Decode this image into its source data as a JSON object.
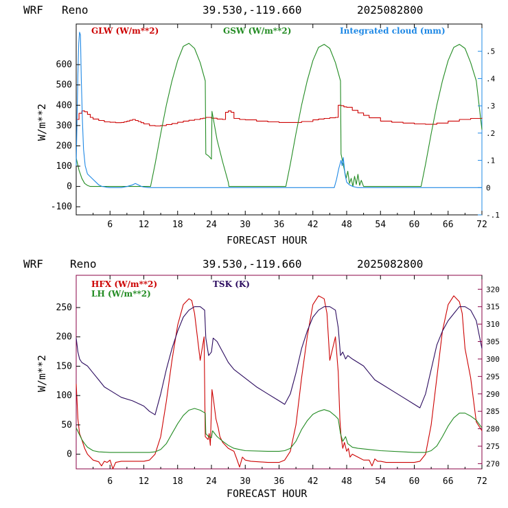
{
  "colors": {
    "red": "#cc0000",
    "green": "#228b22",
    "blue": "#1e88e5",
    "purple": "#2a0a5e",
    "frame": "#000000",
    "top_right_axis": "#1e88e5",
    "bottom_right_axis": "#880044"
  },
  "chart_data": [
    {
      "type": "line",
      "header": {
        "model": "WRF",
        "site": "Reno",
        "coords": "39.530,-119.660",
        "run": "2025082800"
      },
      "xlabel": "FORECAST HOUR",
      "ylabel": "W/m**2",
      "xlim": [
        0,
        72
      ],
      "ylim": [
        -140,
        800
      ],
      "y2lim": [
        -0.1,
        0.6
      ],
      "xticks": [
        6,
        12,
        18,
        24,
        30,
        36,
        42,
        48,
        54,
        60,
        66,
        72
      ],
      "yticks": [
        -100,
        0,
        100,
        200,
        300,
        400,
        500,
        600
      ],
      "y2ticks": [
        {
          "v": -0.1,
          "label": "-.1"
        },
        {
          "v": 0,
          "label": "0"
        },
        {
          "v": 0.1,
          "label": ".1"
        },
        {
          "v": 0.2,
          "label": ".2"
        },
        {
          "v": 0.3,
          "label": ".3"
        },
        {
          "v": 0.4,
          "label": ".4"
        },
        {
          "v": 0.5,
          "label": ".5"
        }
      ],
      "series": [
        {
          "name": "GLW (W/m**2)",
          "color": "#cc0000",
          "axis": "left",
          "step": true,
          "x": [
            0,
            0.5,
            1,
            1.5,
            2,
            2.5,
            3,
            4,
            5,
            6,
            7,
            8,
            8.5,
            9,
            9.5,
            10,
            10.5,
            11,
            11.5,
            12,
            13,
            14,
            15,
            16,
            17,
            18,
            19,
            20,
            21,
            22,
            22.5,
            23,
            24,
            25,
            26,
            26.5,
            27,
            27.5,
            28,
            29,
            30,
            32,
            34,
            36,
            38,
            40,
            42,
            43,
            44,
            45,
            46,
            46.5,
            47,
            47.5,
            48,
            49,
            50,
            51,
            52,
            54,
            56,
            58,
            60,
            62,
            64,
            66,
            68,
            70,
            72
          ],
          "y": [
            330,
            360,
            372,
            368,
            355,
            340,
            332,
            325,
            318,
            316,
            314,
            315,
            318,
            322,
            326,
            330,
            325,
            320,
            314,
            308,
            300,
            298,
            300,
            305,
            310,
            316,
            322,
            326,
            330,
            334,
            336,
            340,
            336,
            332,
            330,
            365,
            372,
            365,
            335,
            330,
            328,
            322,
            318,
            315,
            315,
            320,
            328,
            332,
            335,
            338,
            340,
            400,
            398,
            392,
            390,
            375,
            362,
            350,
            338,
            322,
            316,
            312,
            308,
            306,
            312,
            322,
            330,
            335,
            338
          ]
        },
        {
          "name": "GSW (W/m**2)",
          "color": "#228b22",
          "axis": "left",
          "step": false,
          "x": [
            0,
            0.5,
            1,
            1.5,
            2,
            2.5,
            3,
            13.2,
            14,
            15,
            16,
            17,
            18,
            19,
            20,
            21,
            22,
            22.9,
            23,
            23.5,
            24,
            24.1,
            25,
            26,
            27,
            27.1,
            28,
            37.2,
            38,
            39,
            40,
            41,
            42,
            43,
            44,
            45,
            46,
            46.9,
            47,
            47.3,
            47.6,
            47.9,
            48.2,
            48.5,
            48.8,
            49.1,
            49.4,
            49.7,
            50,
            50.3,
            50.6,
            51,
            61.2,
            62,
            63,
            64,
            65,
            66,
            67,
            68,
            69,
            70,
            71,
            72
          ],
          "y": [
            140,
            80,
            40,
            15,
            5,
            0,
            0,
            0,
            110,
            260,
            400,
            520,
            620,
            690,
            705,
            680,
            610,
            520,
            160,
            150,
            135,
            370,
            230,
            120,
            20,
            0,
            0,
            0,
            110,
            260,
            400,
            520,
            620,
            685,
            700,
            680,
            610,
            520,
            160,
            120,
            80,
            40,
            75,
            15,
            40,
            0,
            50,
            10,
            60,
            5,
            30,
            0,
            0,
            110,
            260,
            400,
            520,
            620,
            685,
            700,
            680,
            610,
            520,
            280
          ]
        },
        {
          "name": "Integrated cloud (mm)",
          "color": "#1e88e5",
          "axis": "right",
          "step": false,
          "x": [
            0,
            0.15,
            0.3,
            0.45,
            0.6,
            0.75,
            0.9,
            1.1,
            1.3,
            1.6,
            2,
            2.5,
            3,
            3.5,
            4,
            4.5,
            5,
            5.5,
            6,
            8,
            9,
            10,
            10.5,
            11,
            11.5,
            12,
            12.5,
            13,
            45.8,
            46.2,
            46.6,
            47,
            47.2,
            47.4,
            47.7,
            48,
            48.5,
            49,
            49.5,
            50,
            72
          ],
          "y": [
            0.08,
            0.25,
            0.42,
            0.53,
            0.57,
            0.56,
            0.4,
            0.25,
            0.14,
            0.08,
            0.05,
            0.04,
            0.03,
            0.02,
            0.01,
            0.005,
            0.003,
            0.001,
            0,
            0,
            0.004,
            0.01,
            0.015,
            0.01,
            0.005,
            0.002,
            0.001,
            0,
            0,
            0.03,
            0.07,
            0.1,
            0.08,
            0.11,
            0.05,
            0.02,
            0.01,
            0.005,
            0.002,
            0,
            0
          ]
        }
      ]
    },
    {
      "type": "line",
      "header": {
        "model": "WRF",
        "site": "Reno",
        "coords": "39.530,-119.660",
        "run": "2025082800"
      },
      "xlabel": "FORECAST HOUR",
      "ylabel": "W/m**2",
      "xlim": [
        0,
        72
      ],
      "ylim": [
        -25,
        305
      ],
      "y2lim": [
        268.5,
        324
      ],
      "xticks": [
        6,
        12,
        18,
        24,
        30,
        36,
        42,
        48,
        54,
        60,
        66,
        72
      ],
      "yticks": [
        0,
        50,
        100,
        150,
        200,
        250
      ],
      "y2ticks": [
        {
          "v": 270,
          "label": "270"
        },
        {
          "v": 275,
          "label": "275"
        },
        {
          "v": 280,
          "label": "280"
        },
        {
          "v": 285,
          "label": "285"
        },
        {
          "v": 290,
          "label": "290"
        },
        {
          "v": 295,
          "label": "295"
        },
        {
          "v": 300,
          "label": "300"
        },
        {
          "v": 305,
          "label": "305"
        },
        {
          "v": 310,
          "label": "310"
        },
        {
          "v": 315,
          "label": "315"
        },
        {
          "v": 320,
          "label": "320"
        }
      ],
      "series": [
        {
          "name": "HFX (W/m**2)",
          "color": "#cc0000",
          "axis": "left",
          "step": false,
          "x": [
            0,
            0.3,
            0.6,
            1,
            1.5,
            2,
            3,
            4,
            4.5,
            5,
            5.5,
            6,
            6.5,
            7,
            8,
            10,
            12,
            13,
            14,
            15,
            16,
            17,
            18,
            19,
            20,
            20.5,
            21,
            22,
            22.7,
            22.9,
            23.4,
            23.6,
            23.8,
            24.1,
            24.4,
            24.8,
            25.2,
            25.5,
            26,
            27,
            28,
            28.5,
            29,
            29.5,
            30,
            31,
            34,
            36,
            37,
            38,
            39,
            40,
            41,
            42,
            43,
            44,
            44.5,
            45,
            46,
            46.5,
            46.8,
            47,
            47.3,
            47.6,
            48,
            48.3,
            48.6,
            49,
            50,
            51,
            52,
            52.5,
            53,
            53.5,
            54,
            55,
            58,
            60,
            61,
            62,
            63,
            64,
            65,
            66,
            67,
            68,
            68.5,
            69,
            70,
            71,
            72
          ],
          "y": [
            120,
            60,
            35,
            25,
            10,
            0,
            -10,
            -13,
            -20,
            -12,
            -14,
            -10,
            -25,
            -14,
            -12,
            -12,
            -12,
            -10,
            0,
            30,
            90,
            160,
            220,
            255,
            265,
            262,
            240,
            160,
            200,
            30,
            25,
            35,
            15,
            110,
            90,
            60,
            45,
            30,
            20,
            10,
            5,
            -8,
            -22,
            -5,
            -10,
            -12,
            -14,
            -14,
            -10,
            5,
            50,
            130,
            200,
            255,
            270,
            265,
            240,
            160,
            200,
            140,
            60,
            30,
            10,
            20,
            5,
            10,
            -5,
            0,
            -5,
            -10,
            -10,
            -20,
            -8,
            -12,
            -12,
            -14,
            -14,
            -14,
            -12,
            0,
            50,
            130,
            210,
            255,
            270,
            260,
            240,
            180,
            130,
            55,
            40
          ]
        },
        {
          "name": "LH (W/m**2)",
          "color": "#228b22",
          "axis": "left",
          "step": false,
          "x": [
            0,
            0.5,
            1,
            1.5,
            2,
            3,
            4,
            6,
            8,
            10,
            12,
            13,
            14,
            15,
            16,
            17,
            18,
            19,
            20,
            21,
            22,
            22.9,
            23,
            23.5,
            24,
            24.2,
            25,
            26,
            27,
            28,
            29,
            30,
            34,
            36,
            37,
            38,
            39,
            40,
            41,
            42,
            43,
            44,
            45,
            46,
            46.5,
            46.9,
            47.3,
            47.8,
            48.2,
            48.6,
            49,
            50,
            52,
            54,
            58,
            60,
            61,
            62,
            63,
            64,
            65,
            66,
            67,
            68,
            69,
            70,
            71,
            72
          ],
          "y": [
            45,
            35,
            25,
            18,
            12,
            6,
            4,
            3,
            3,
            3,
            3,
            3,
            4,
            8,
            18,
            35,
            52,
            66,
            75,
            78,
            75,
            70,
            35,
            30,
            28,
            40,
            30,
            22,
            15,
            10,
            8,
            6,
            5,
            5,
            6,
            10,
            22,
            42,
            57,
            68,
            73,
            76,
            73,
            65,
            60,
            35,
            22,
            30,
            18,
            15,
            12,
            10,
            8,
            6,
            4,
            3,
            3,
            3,
            6,
            14,
            30,
            48,
            62,
            70,
            70,
            65,
            58,
            45
          ]
        },
        {
          "name": "TSK (K)",
          "color": "#2a0a5e",
          "axis": "right",
          "step": false,
          "x": [
            0,
            0.3,
            0.6,
            1,
            2,
            3,
            4,
            5,
            6,
            8,
            10,
            12,
            13,
            14,
            15,
            16,
            17,
            18,
            19,
            20,
            21,
            22,
            22.8,
            23,
            23.5,
            24,
            24.3,
            25,
            26,
            27,
            28,
            30,
            32,
            34,
            36,
            37,
            38,
            39,
            40,
            41,
            42,
            43,
            44,
            45,
            46,
            46.5,
            46.9,
            47.3,
            47.8,
            48.2,
            49,
            50,
            51,
            52,
            53,
            54,
            56,
            58,
            60,
            61,
            62,
            63,
            64,
            65,
            66,
            67,
            68,
            69,
            70,
            71,
            72
          ],
          "y": [
            306,
            302,
            300,
            299,
            298,
            296,
            294,
            292,
            291,
            289,
            288,
            286.5,
            285,
            284,
            290,
            297,
            303,
            308,
            312,
            314,
            315,
            315,
            314,
            306,
            301,
            302,
            306,
            305,
            302,
            299,
            297,
            294.5,
            292,
            290,
            288,
            287,
            290,
            296,
            303,
            308,
            312,
            314,
            315,
            315,
            314,
            309,
            301,
            302,
            300,
            301,
            300,
            299,
            298,
            296,
            294,
            293,
            291,
            289,
            287,
            286,
            290,
            297,
            304,
            308,
            311,
            313,
            315,
            315,
            314,
            311,
            303
          ]
        }
      ]
    }
  ]
}
